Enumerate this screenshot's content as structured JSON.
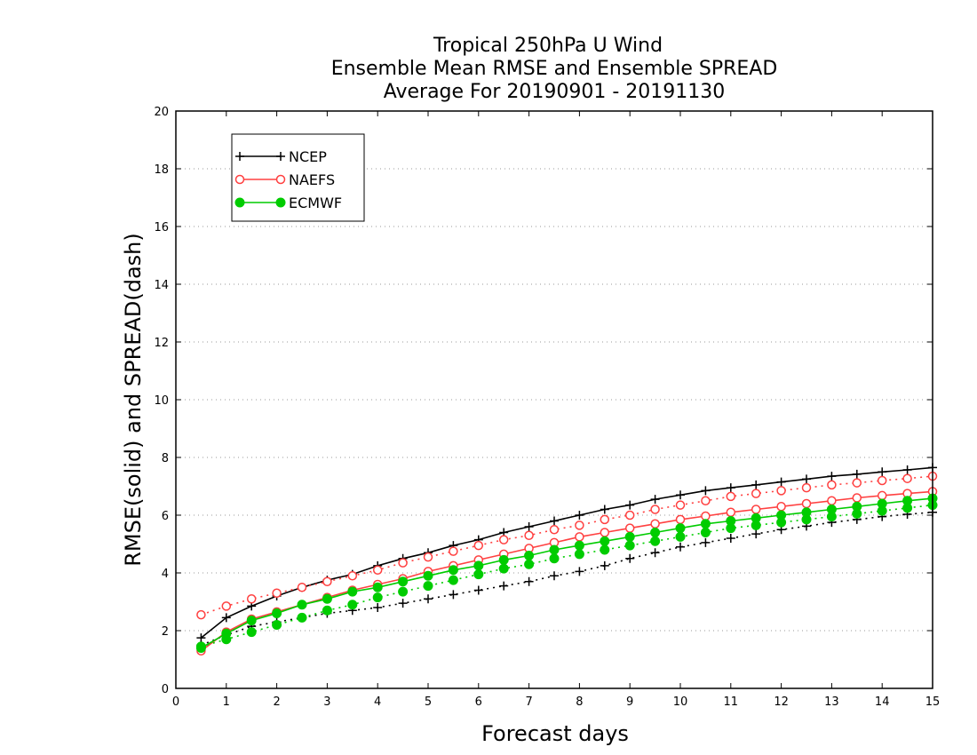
{
  "chart_data": {
    "type": "line",
    "title_lines": [
      "Tropical 250hPa U Wind",
      "Ensemble Mean RMSE and Ensemble SPREAD",
      "Average For 20190901 - 20191130"
    ],
    "xlabel": "Forecast days",
    "ylabel": "RMSE(solid) and SPREAD(dash)",
    "xlim": [
      0,
      15
    ],
    "ylim": [
      0,
      20
    ],
    "xticks": [
      0,
      1,
      2,
      3,
      4,
      5,
      6,
      7,
      8,
      9,
      10,
      11,
      12,
      13,
      14,
      15
    ],
    "yticks": [
      0,
      2,
      4,
      6,
      8,
      10,
      12,
      14,
      16,
      18,
      20
    ],
    "grid": "horizontal dotted",
    "legend_position": "top-left",
    "x": [
      0.5,
      1,
      1.5,
      2,
      2.5,
      3,
      3.5,
      4,
      4.5,
      5,
      5.5,
      6,
      6.5,
      7,
      7.5,
      8,
      8.5,
      9,
      9.5,
      10,
      10.5,
      11,
      11.5,
      12,
      12.5,
      13,
      13.5,
      14,
      14.5,
      15
    ],
    "series": [
      {
        "name": "NCEP",
        "color": "#000000",
        "marker": "plus",
        "rmse": [
          1.75,
          2.45,
          2.85,
          3.2,
          3.5,
          3.75,
          3.95,
          4.25,
          4.5,
          4.7,
          4.95,
          5.15,
          5.4,
          5.6,
          5.8,
          6.0,
          6.2,
          6.35,
          6.55,
          6.7,
          6.85,
          6.95,
          7.05,
          7.15,
          7.25,
          7.35,
          7.42,
          7.5,
          7.57,
          7.65
        ],
        "spread": [
          1.5,
          1.85,
          2.15,
          2.3,
          2.45,
          2.6,
          2.7,
          2.8,
          2.95,
          3.1,
          3.25,
          3.4,
          3.55,
          3.7,
          3.9,
          4.05,
          4.25,
          4.5,
          4.7,
          4.9,
          5.05,
          5.2,
          5.35,
          5.5,
          5.62,
          5.75,
          5.85,
          5.95,
          6.03,
          6.1
        ]
      },
      {
        "name": "NAEFS",
        "color": "#ff4040",
        "marker": "circle-open",
        "rmse": [
          1.3,
          1.95,
          2.4,
          2.65,
          2.9,
          3.15,
          3.4,
          3.6,
          3.8,
          4.05,
          4.25,
          4.45,
          4.65,
          4.85,
          5.05,
          5.25,
          5.4,
          5.55,
          5.7,
          5.85,
          5.97,
          6.1,
          6.2,
          6.3,
          6.4,
          6.5,
          6.6,
          6.68,
          6.75,
          6.82
        ],
        "spread": [
          2.55,
          2.85,
          3.1,
          3.3,
          3.5,
          3.7,
          3.9,
          4.1,
          4.35,
          4.55,
          4.75,
          4.95,
          5.15,
          5.3,
          5.5,
          5.65,
          5.85,
          6.0,
          6.2,
          6.35,
          6.5,
          6.65,
          6.75,
          6.85,
          6.95,
          7.05,
          7.12,
          7.2,
          7.27,
          7.35
        ]
      },
      {
        "name": "ECMWF",
        "color": "#00cc00",
        "marker": "circle-filled",
        "rmse": [
          1.4,
          1.9,
          2.35,
          2.6,
          2.9,
          3.1,
          3.35,
          3.5,
          3.7,
          3.9,
          4.1,
          4.25,
          4.45,
          4.6,
          4.8,
          4.95,
          5.1,
          5.25,
          5.4,
          5.55,
          5.7,
          5.8,
          5.9,
          6.0,
          6.1,
          6.2,
          6.3,
          6.4,
          6.5,
          6.58
        ],
        "spread": [
          1.45,
          1.7,
          1.95,
          2.2,
          2.45,
          2.7,
          2.9,
          3.15,
          3.35,
          3.55,
          3.75,
          3.95,
          4.15,
          4.3,
          4.5,
          4.65,
          4.8,
          4.95,
          5.1,
          5.25,
          5.4,
          5.55,
          5.65,
          5.75,
          5.85,
          5.95,
          6.05,
          6.15,
          6.25,
          6.35
        ]
      }
    ]
  }
}
